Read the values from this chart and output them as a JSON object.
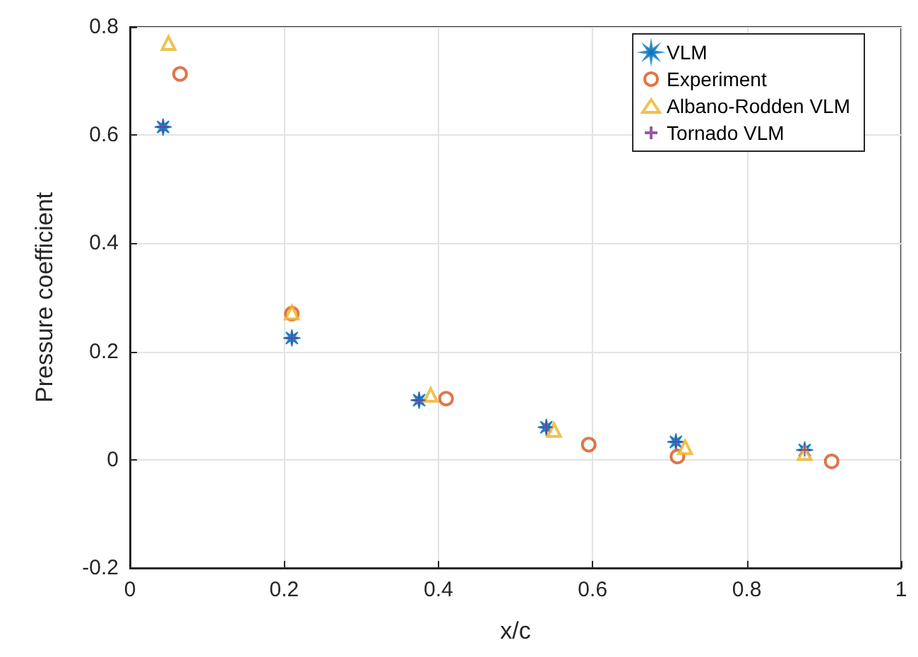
{
  "chart_data": {
    "type": "scatter",
    "xlabel": "x/c",
    "ylabel": "Pressure coefficient",
    "xlim": [
      0,
      1
    ],
    "xticks": [
      0,
      0.2,
      0.4,
      0.6,
      0.8,
      1
    ],
    "ylim": [
      -0.2,
      0.8
    ],
    "yticks": [
      -0.2,
      0,
      0.2,
      0.4,
      0.6,
      0.8
    ],
    "grid": true,
    "legend": "top right",
    "series": [
      {
        "name": "VLM",
        "color": "#0072bd",
        "marker": "star",
        "x": [
          0.043,
          0.21,
          0.375,
          0.54,
          0.708,
          0.875
        ],
        "values": [
          0.615,
          0.225,
          0.11,
          0.06,
          0.033,
          0.018
        ]
      },
      {
        "name": "Experiment",
        "color": "#d95319",
        "marker": "circle",
        "x": [
          0.065,
          0.21,
          0.41,
          0.595,
          0.71,
          0.91
        ],
        "values": [
          0.713,
          0.27,
          0.113,
          0.028,
          0.006,
          -0.003
        ]
      },
      {
        "name": "Albano-Rodden VLM",
        "color": "#edb120",
        "marker": "triangle",
        "x": [
          0.05,
          0.21,
          0.39,
          0.55,
          0.72,
          0.875
        ],
        "values": [
          0.77,
          0.272,
          0.12,
          0.055,
          0.023,
          0.012
        ]
      },
      {
        "name": "Tornado VLM",
        "color": "#7e2f8e",
        "marker": "cross",
        "x": [
          0.043,
          0.21,
          0.375,
          0.54,
          0.708,
          0.875
        ],
        "values": [
          0.615,
          0.225,
          0.11,
          0.06,
          0.033,
          0.018
        ]
      }
    ]
  }
}
